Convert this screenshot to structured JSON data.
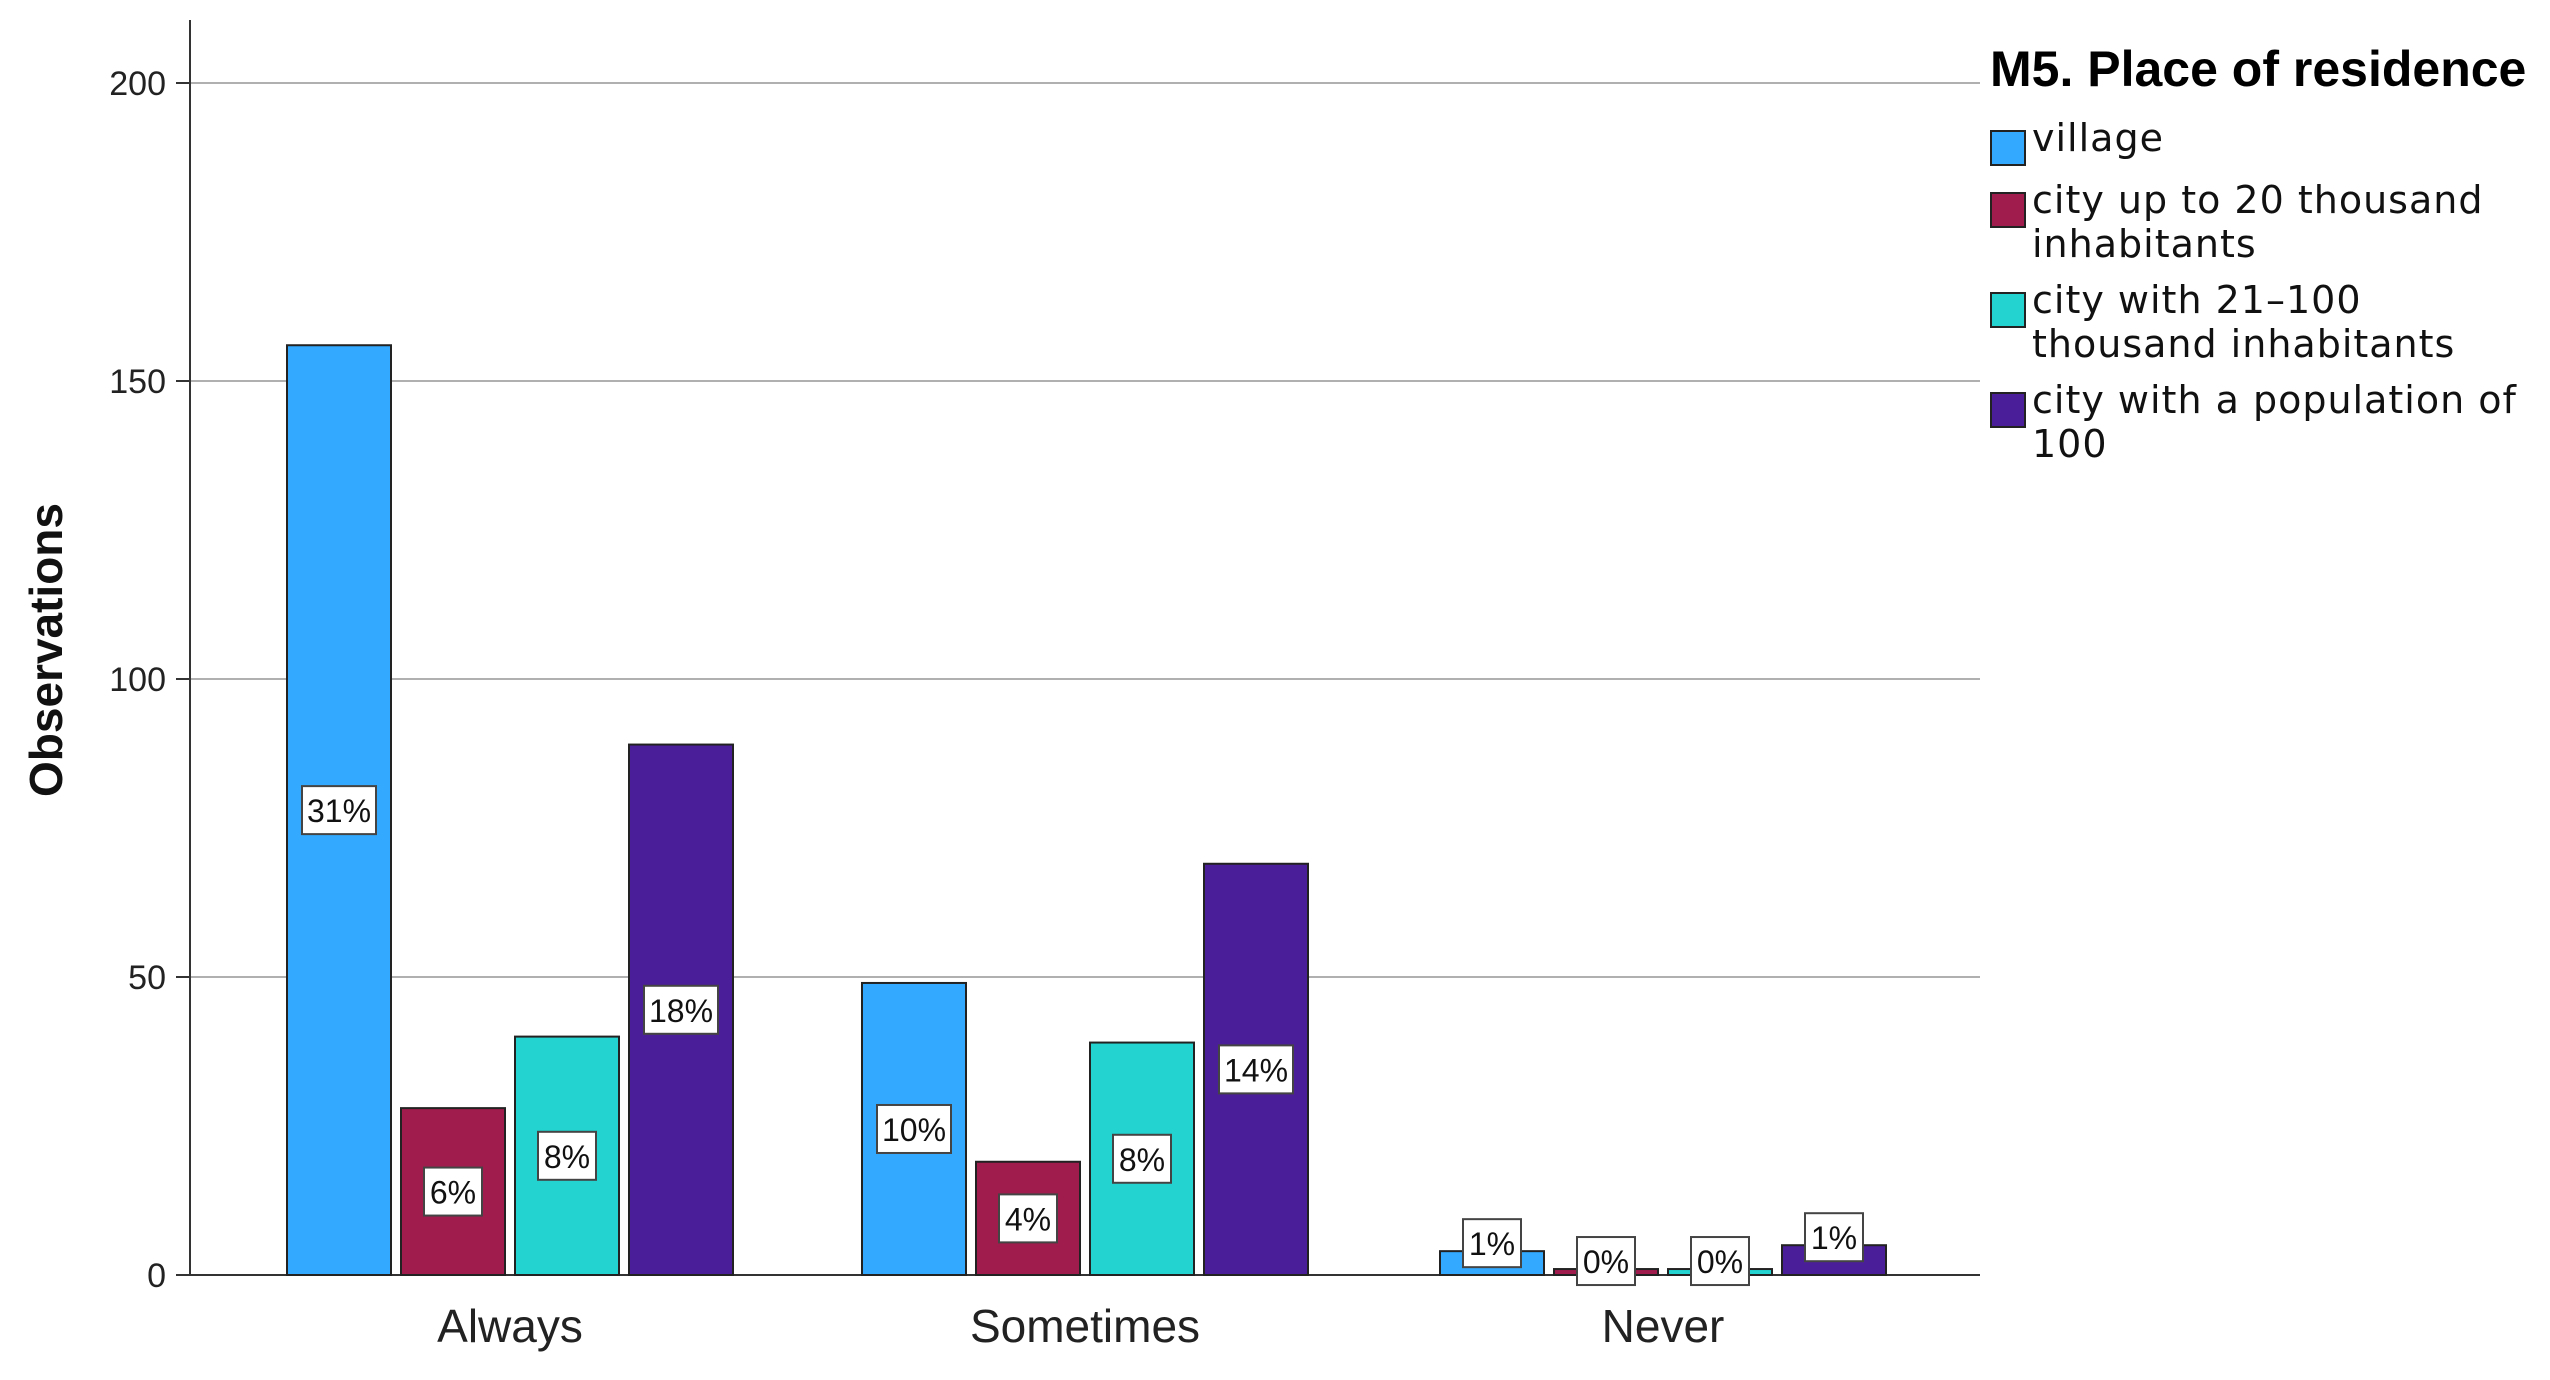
{
  "chart_data": {
    "type": "bar",
    "ylabel": "Observations",
    "xlabel": "",
    "ylim": [
      0,
      210
    ],
    "yticks": [
      0,
      50,
      100,
      150,
      200
    ],
    "grid": true,
    "legend_position": "top-right",
    "legend_title": "M5. Place of residence",
    "categories": [
      "Always",
      "Sometimes",
      "Never"
    ],
    "series": [
      {
        "name": "village",
        "color": "#33aaff",
        "values": [
          156,
          49,
          4
        ],
        "labels": [
          "31%",
          "10%",
          "1%"
        ]
      },
      {
        "name": "city up to 20 thousand inhabitants",
        "color": "#a01c4c",
        "values": [
          28,
          19,
          1
        ],
        "labels": [
          "6%",
          "4%",
          "0%"
        ]
      },
      {
        "name": "city with 21–100 thousand inhabitants",
        "color": "#22d3cf",
        "values": [
          40,
          39,
          1
        ],
        "labels": [
          "8%",
          "8%",
          "0%"
        ]
      },
      {
        "name": "city with a population of 100",
        "color": "#4b1e99",
        "values": [
          89,
          69,
          5
        ],
        "labels": [
          "18%",
          "14%",
          "1%"
        ]
      }
    ]
  }
}
